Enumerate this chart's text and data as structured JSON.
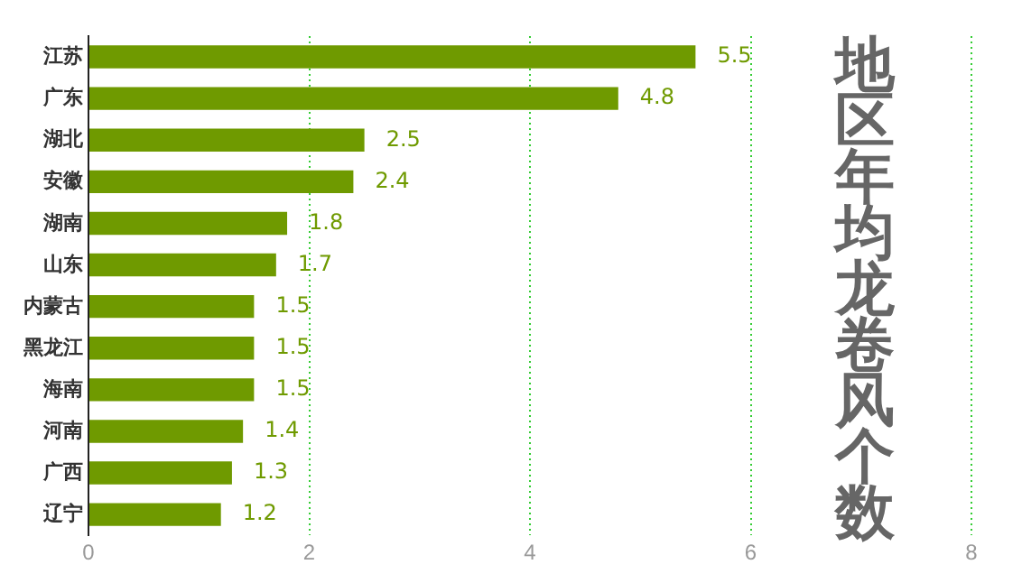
{
  "chart_data": {
    "type": "bar",
    "orientation": "horizontal",
    "title": "地区年均龙卷风个数",
    "categories": [
      "江苏",
      "广东",
      "湖北",
      "安徽",
      "湖南",
      "山东",
      "内蒙古",
      "黑龙江",
      "海南",
      "河南",
      "广西",
      "辽宁"
    ],
    "values": [
      5.5,
      4.8,
      2.5,
      2.4,
      1.8,
      1.7,
      1.5,
      1.5,
      1.5,
      1.4,
      1.3,
      1.2
    ],
    "color": "#6f9a00",
    "xlim": [
      0,
      8
    ],
    "xticks": [
      0,
      2,
      4,
      6,
      8
    ],
    "grid": "x",
    "data_labels": true,
    "legend": false
  }
}
